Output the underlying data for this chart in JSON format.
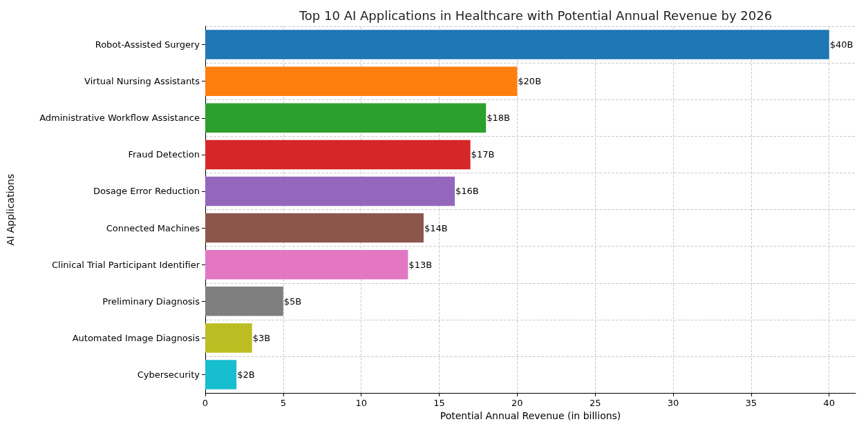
{
  "chart_data": {
    "type": "bar",
    "orientation": "horizontal",
    "title": "Top 10 AI Applications in Healthcare with Potential Annual Revenue by 2026",
    "xlabel": "Potential Annual Revenue (in billions)",
    "ylabel": "AI Applications",
    "categories": [
      "Robot-Assisted Surgery",
      "Virtual Nursing Assistants",
      "Administrative Workflow Assistance",
      "Fraud Detection",
      "Dosage Error Reduction",
      "Connected Machines",
      "Clinical Trial Participant Identifier",
      "Preliminary Diagnosis",
      "Automated Image Diagnosis",
      "Cybersecurity"
    ],
    "values": [
      40,
      20,
      18,
      17,
      16,
      14,
      13,
      5,
      3,
      2
    ],
    "colors": [
      "#1f77b4",
      "#ff7f0e",
      "#2ca02c",
      "#d62728",
      "#9467bd",
      "#8c564b",
      "#e377c2",
      "#7f7f7f",
      "#bcbd22",
      "#17becf"
    ],
    "value_labels": [
      "$40B",
      "$20B",
      "$18B",
      "$17B",
      "$16B",
      "$14B",
      "$13B",
      "$5B",
      "$3B",
      "$2B"
    ],
    "xlim": [
      0,
      41.7
    ],
    "xticks": [
      0,
      5,
      10,
      15,
      20,
      25,
      30,
      35,
      40
    ],
    "grid": true
  }
}
